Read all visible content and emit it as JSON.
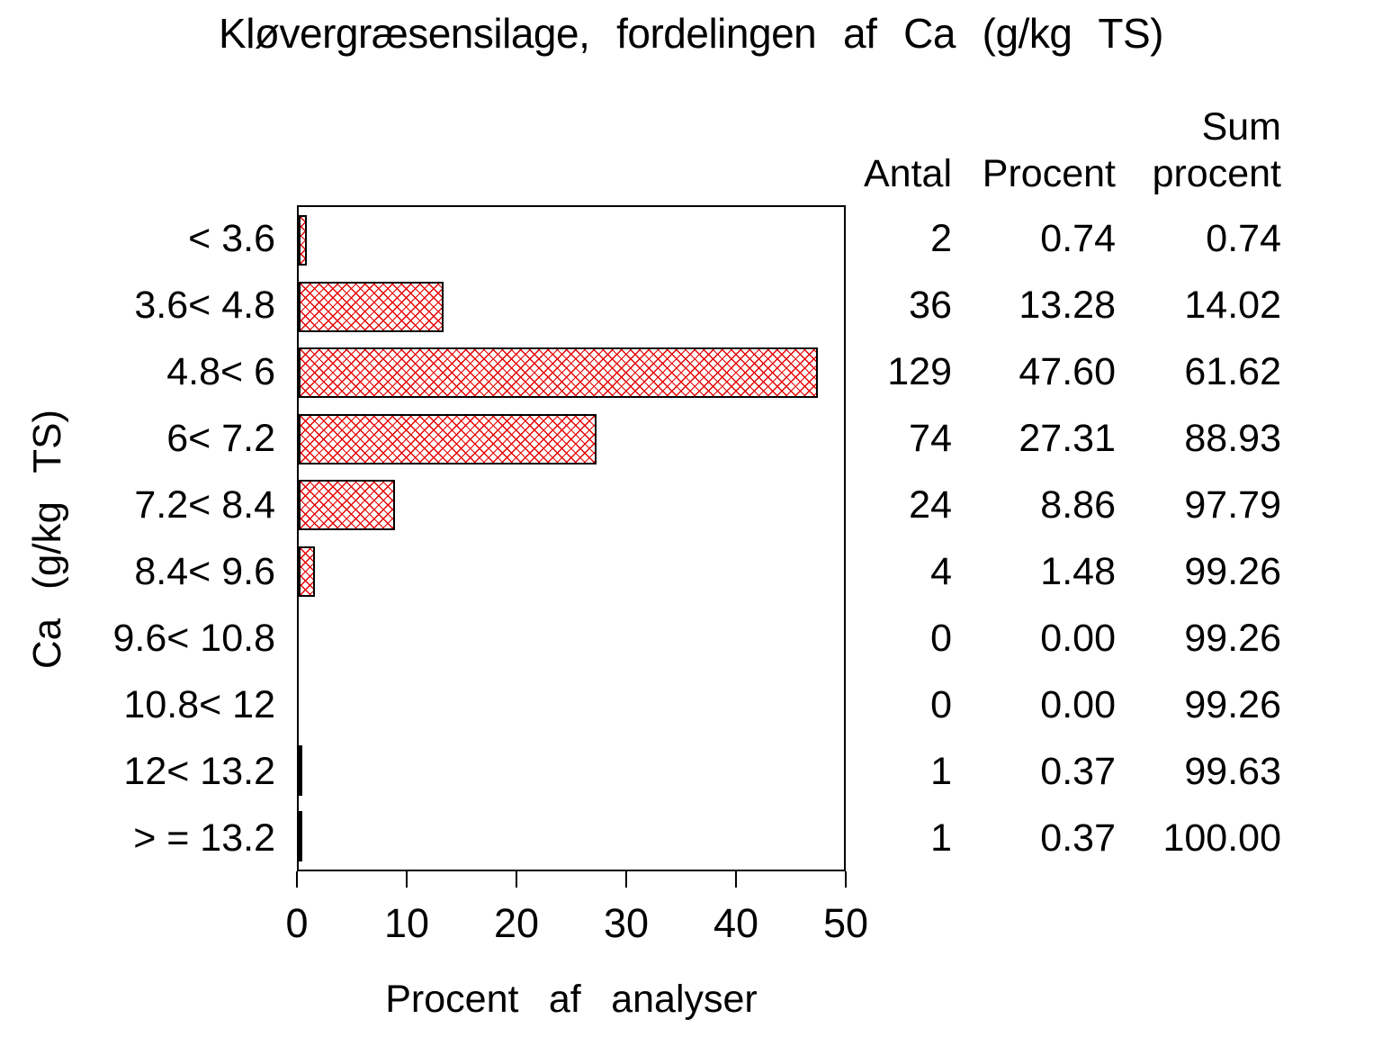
{
  "title": "Kløvergræsensilage, fordelingen af Ca (g/kg TS)",
  "chart_data": {
    "type": "bar",
    "orientation": "horizontal",
    "title": "Kløvergræsensilage, fordelingen af Ca (g/kg TS)",
    "xlabel": "Procent af analyser",
    "ylabel": "Ca (g/kg TS)",
    "categories": [
      "< 3.6",
      "3.6< 4.8",
      "4.8< 6",
      "6< 7.2",
      "7.2< 8.4",
      "8.4< 9.6",
      "9.6< 10.8",
      "10.8< 12",
      "12< 13.2",
      "> = 13.2"
    ],
    "values": [
      0.74,
      13.28,
      47.6,
      27.31,
      8.86,
      1.48,
      0.0,
      0.0,
      0.37,
      0.37
    ],
    "xlim": [
      0,
      50
    ],
    "xticks": [
      0,
      10,
      20,
      30,
      40,
      50
    ],
    "grid": false,
    "legend": "none",
    "bar_fill_color": "#e60000",
    "bar_border_color": "#000000",
    "bar_pattern": "crosshatch"
  },
  "table": {
    "headers": {
      "antal": "Antal",
      "procent": "Procent",
      "sum_line1": "Sum",
      "sum_line2": "procent"
    },
    "rows": [
      {
        "antal": "2",
        "procent": "0.74",
        "sum": "0.74"
      },
      {
        "antal": "36",
        "procent": "13.28",
        "sum": "14.02"
      },
      {
        "antal": "129",
        "procent": "47.60",
        "sum": "61.62"
      },
      {
        "antal": "74",
        "procent": "27.31",
        "sum": "88.93"
      },
      {
        "antal": "24",
        "procent": "8.86",
        "sum": "97.79"
      },
      {
        "antal": "4",
        "procent": "1.48",
        "sum": "99.26"
      },
      {
        "antal": "0",
        "procent": "0.00",
        "sum": "99.26"
      },
      {
        "antal": "0",
        "procent": "0.00",
        "sum": "99.26"
      },
      {
        "antal": "1",
        "procent": "0.37",
        "sum": "99.63"
      },
      {
        "antal": "1",
        "procent": "0.37",
        "sum": "100.00"
      }
    ]
  }
}
